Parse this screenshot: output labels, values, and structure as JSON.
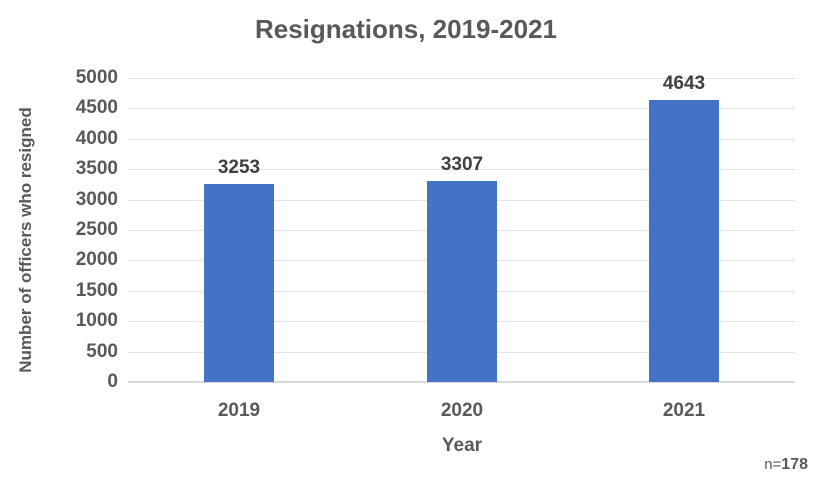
{
  "chart_data": {
    "type": "bar",
    "title": "Resignations, 2019-2021",
    "categories": [
      "2019",
      "2020",
      "2021"
    ],
    "values": [
      3253,
      3307,
      4643
    ],
    "xlabel": "Year",
    "ylabel": "Number of officers who resigned",
    "ylim": [
      0,
      5000
    ],
    "ytick_step": 500,
    "yticks": [
      0,
      500,
      1000,
      1500,
      2000,
      2500,
      3000,
      3500,
      4000,
      4500,
      5000
    ],
    "grid": true,
    "legend": null,
    "data_labels": true,
    "colors": {
      "bar": "#4472c4",
      "gridline": "#e3e3e3",
      "axis_line": "#d9d9d9",
      "title_text": "#595959",
      "tick_text": "#595959",
      "data_label_text": "#404040"
    }
  },
  "note": {
    "prefix": "n=",
    "value": "178"
  }
}
